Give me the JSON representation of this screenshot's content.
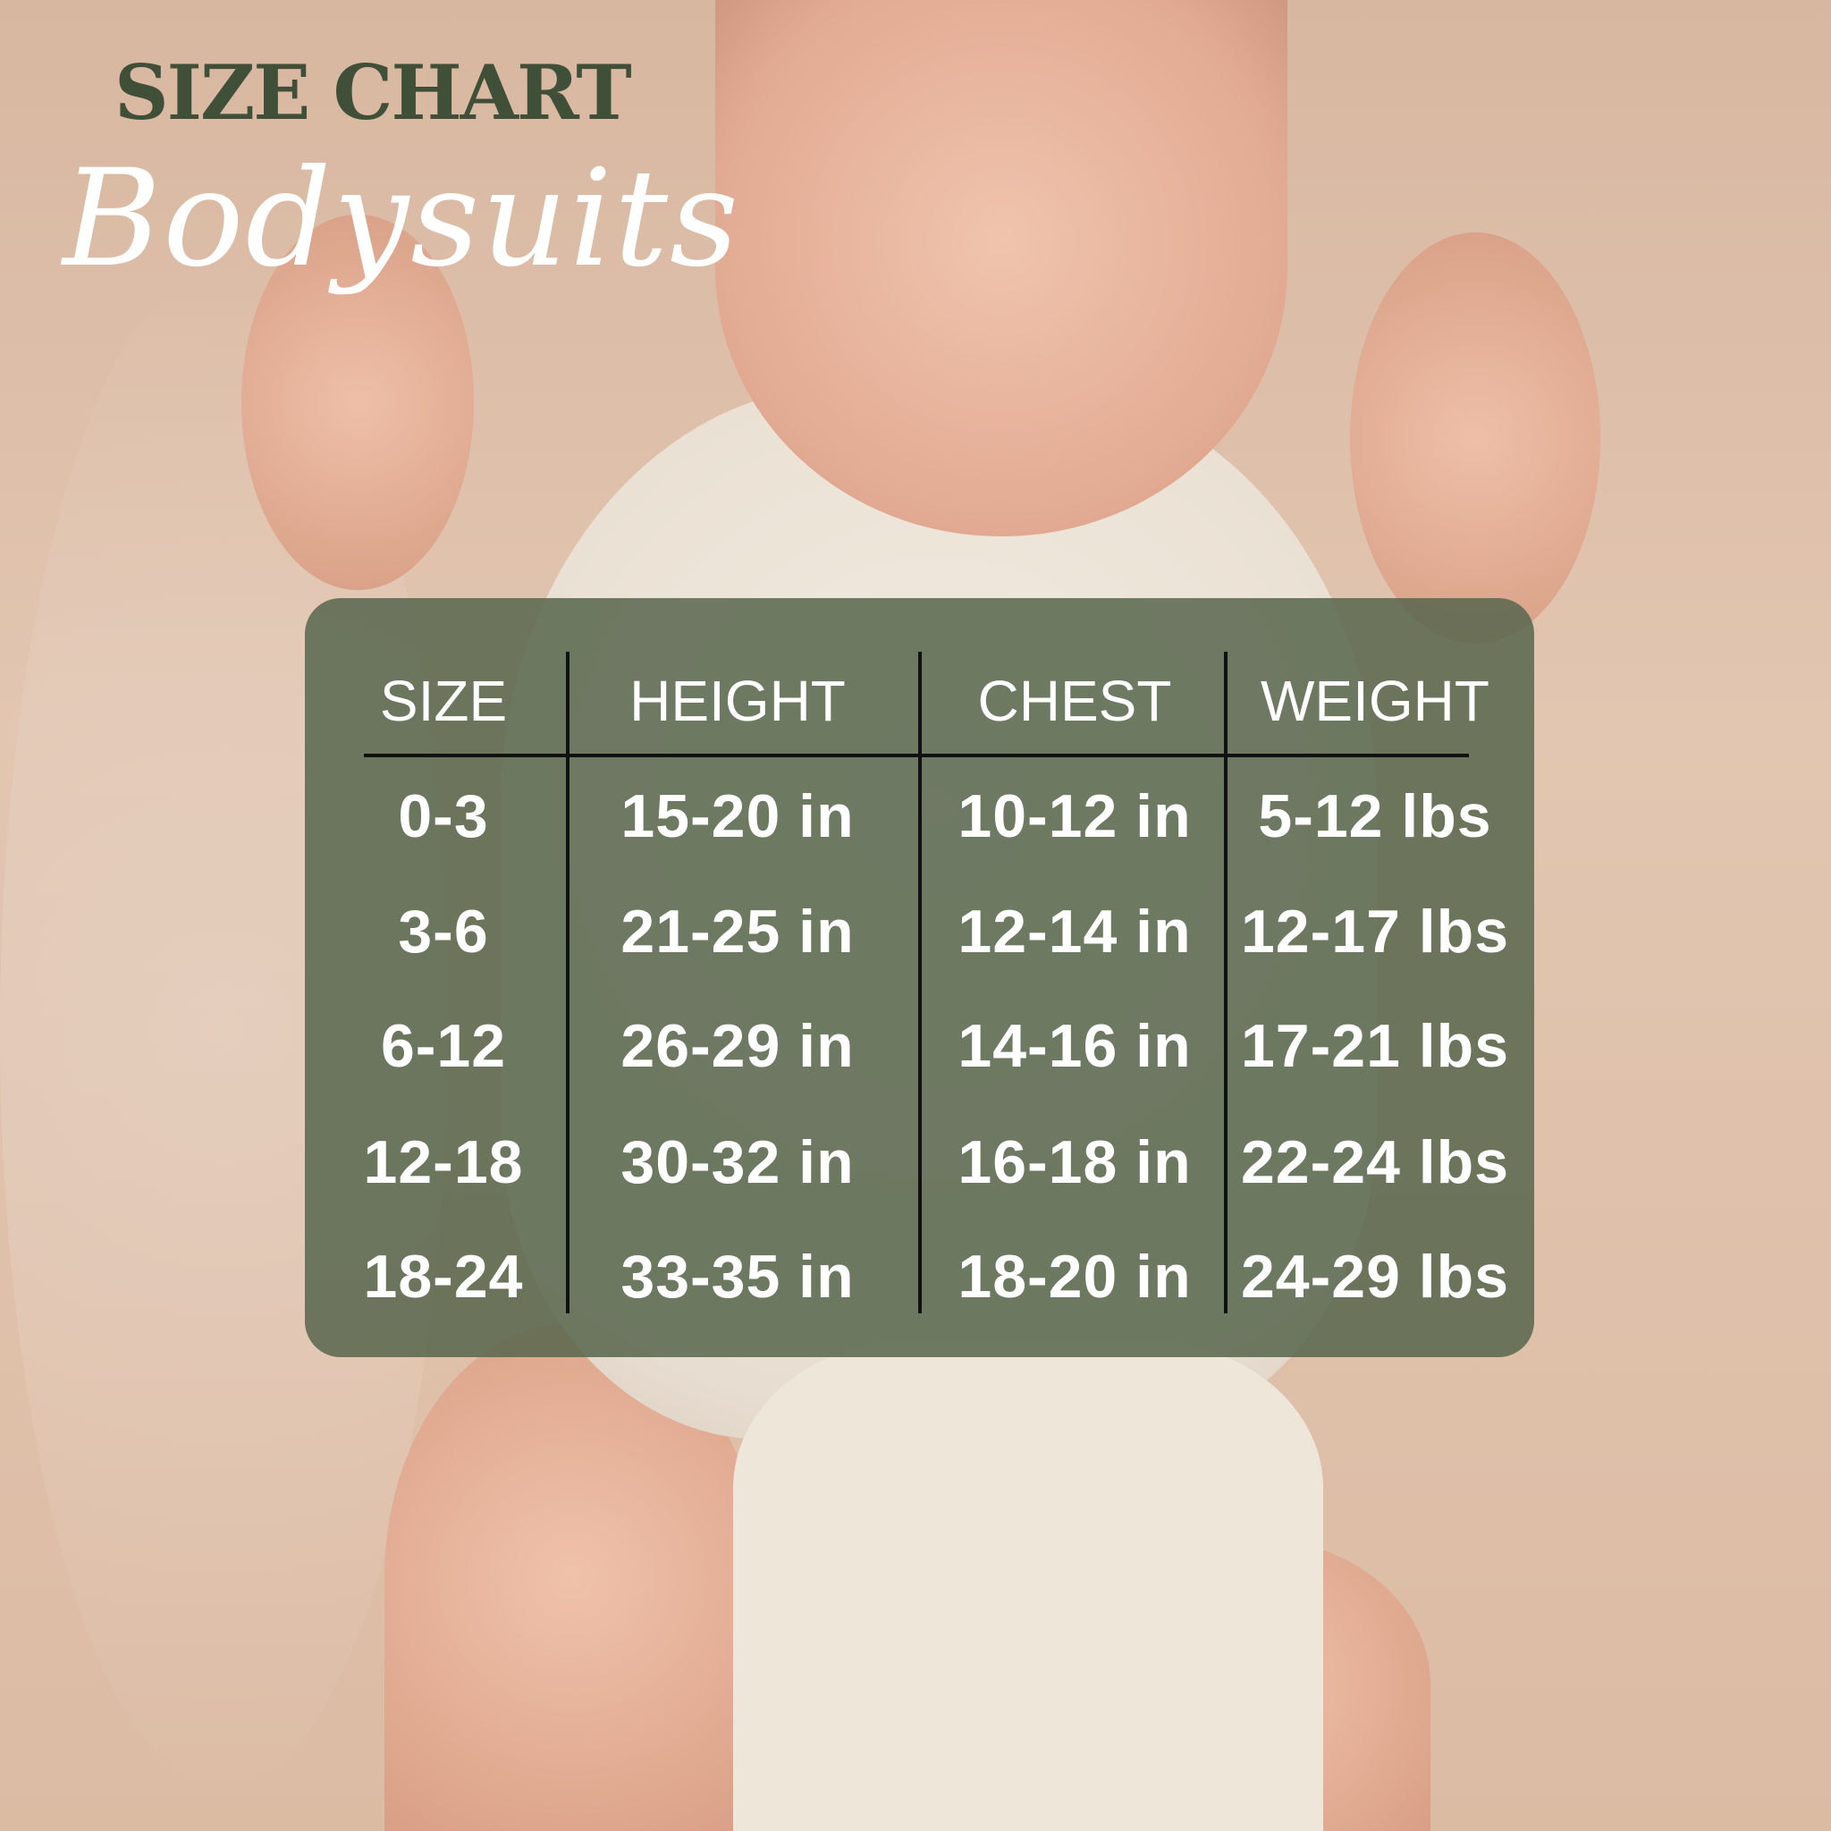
{
  "header": {
    "title": "SIZE CHART",
    "subtitle": "Bodysuits"
  },
  "colors": {
    "title": "#3f4f38",
    "panel": "#58674e",
    "text": "#ffffff"
  },
  "table": {
    "columns": [
      "SIZE",
      "HEIGHT",
      "CHEST",
      "WEIGHT"
    ],
    "rows": [
      [
        "0-3",
        "15-20 in",
        "10-12 in",
        "5-12 lbs"
      ],
      [
        "3-6",
        "21-25 in",
        "12-14 in",
        "12-17 lbs"
      ],
      [
        "6-12",
        "26-29 in",
        "14-16 in",
        "17-21 lbs"
      ],
      [
        "12-18",
        "30-32 in",
        "16-18 in",
        "22-24 lbs"
      ],
      [
        "18-24",
        "33-35 in",
        "18-20 in",
        "24-29 lbs"
      ]
    ]
  }
}
